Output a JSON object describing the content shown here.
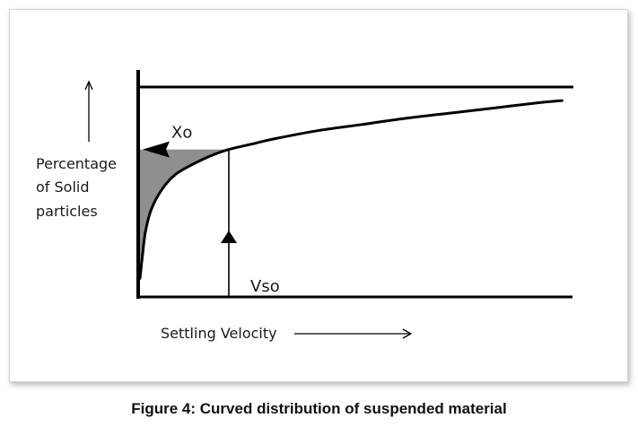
{
  "caption": "Figure 4: Curved distribution of suspended material",
  "chart_data": {
    "type": "line",
    "xlabel": "Settling Velocity",
    "ylabel_lines": [
      "Percentage",
      "of Solid",
      "particles"
    ],
    "annotations": {
      "x_marker": "Vso",
      "y_marker": "Xo"
    },
    "xlim": [
      0,
      1
    ],
    "ylim": [
      0,
      1
    ],
    "series": [
      {
        "x": [
          0.0,
          0.005,
          0.012,
          0.025,
          0.05,
          0.08,
          0.12,
          0.16,
          0.2,
          0.25,
          0.3,
          0.4,
          0.5,
          0.6,
          0.7,
          0.8,
          0.9,
          0.95
        ],
        "y": [
          0.08,
          0.18,
          0.3,
          0.41,
          0.51,
          0.58,
          0.63,
          0.67,
          0.7,
          0.725,
          0.75,
          0.79,
          0.82,
          0.85,
          0.875,
          0.9,
          0.925,
          0.935
        ]
      }
    ],
    "vso_x": 0.2,
    "xo_y": 0.7,
    "shaded_region": "below Xo, above curve, 0 to Vso",
    "colors": {
      "curve": "#000000",
      "shade": "#8f8f8f",
      "axis": "#000000"
    }
  }
}
